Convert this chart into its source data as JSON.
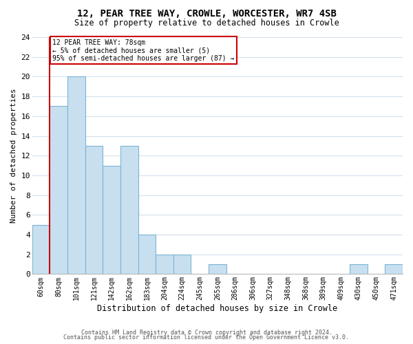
{
  "title": "12, PEAR TREE WAY, CROWLE, WORCESTER, WR7 4SB",
  "subtitle": "Size of property relative to detached houses in Crowle",
  "xlabel": "Distribution of detached houses by size in Crowle",
  "ylabel": "Number of detached properties",
  "bin_labels": [
    "60sqm",
    "80sqm",
    "101sqm",
    "121sqm",
    "142sqm",
    "162sqm",
    "183sqm",
    "204sqm",
    "224sqm",
    "245sqm",
    "265sqm",
    "286sqm",
    "306sqm",
    "327sqm",
    "348sqm",
    "368sqm",
    "389sqm",
    "409sqm",
    "430sqm",
    "450sqm",
    "471sqm"
  ],
  "bar_heights": [
    5,
    17,
    20,
    13,
    11,
    13,
    4,
    2,
    2,
    0,
    1,
    0,
    0,
    0,
    0,
    0,
    0,
    0,
    1,
    0,
    1
  ],
  "bar_color": "#c8dff0",
  "bar_edge_color": "#7ab4d4",
  "highlight_color": "#cc0000",
  "annotation_text": "12 PEAR TREE WAY: 78sqm\n← 5% of detached houses are smaller (5)\n95% of semi-detached houses are larger (87) →",
  "annotation_box_edge_color": "#cc0000",
  "red_line_x": 0.5,
  "ylim": [
    0,
    24
  ],
  "yticks": [
    0,
    2,
    4,
    6,
    8,
    10,
    12,
    14,
    16,
    18,
    20,
    22,
    24
  ],
  "footer_line1": "Contains HM Land Registry data © Crown copyright and database right 2024.",
  "footer_line2": "Contains public sector information licensed under the Open Government Licence v3.0.",
  "background_color": "#ffffff",
  "grid_color": "#d0dcea"
}
